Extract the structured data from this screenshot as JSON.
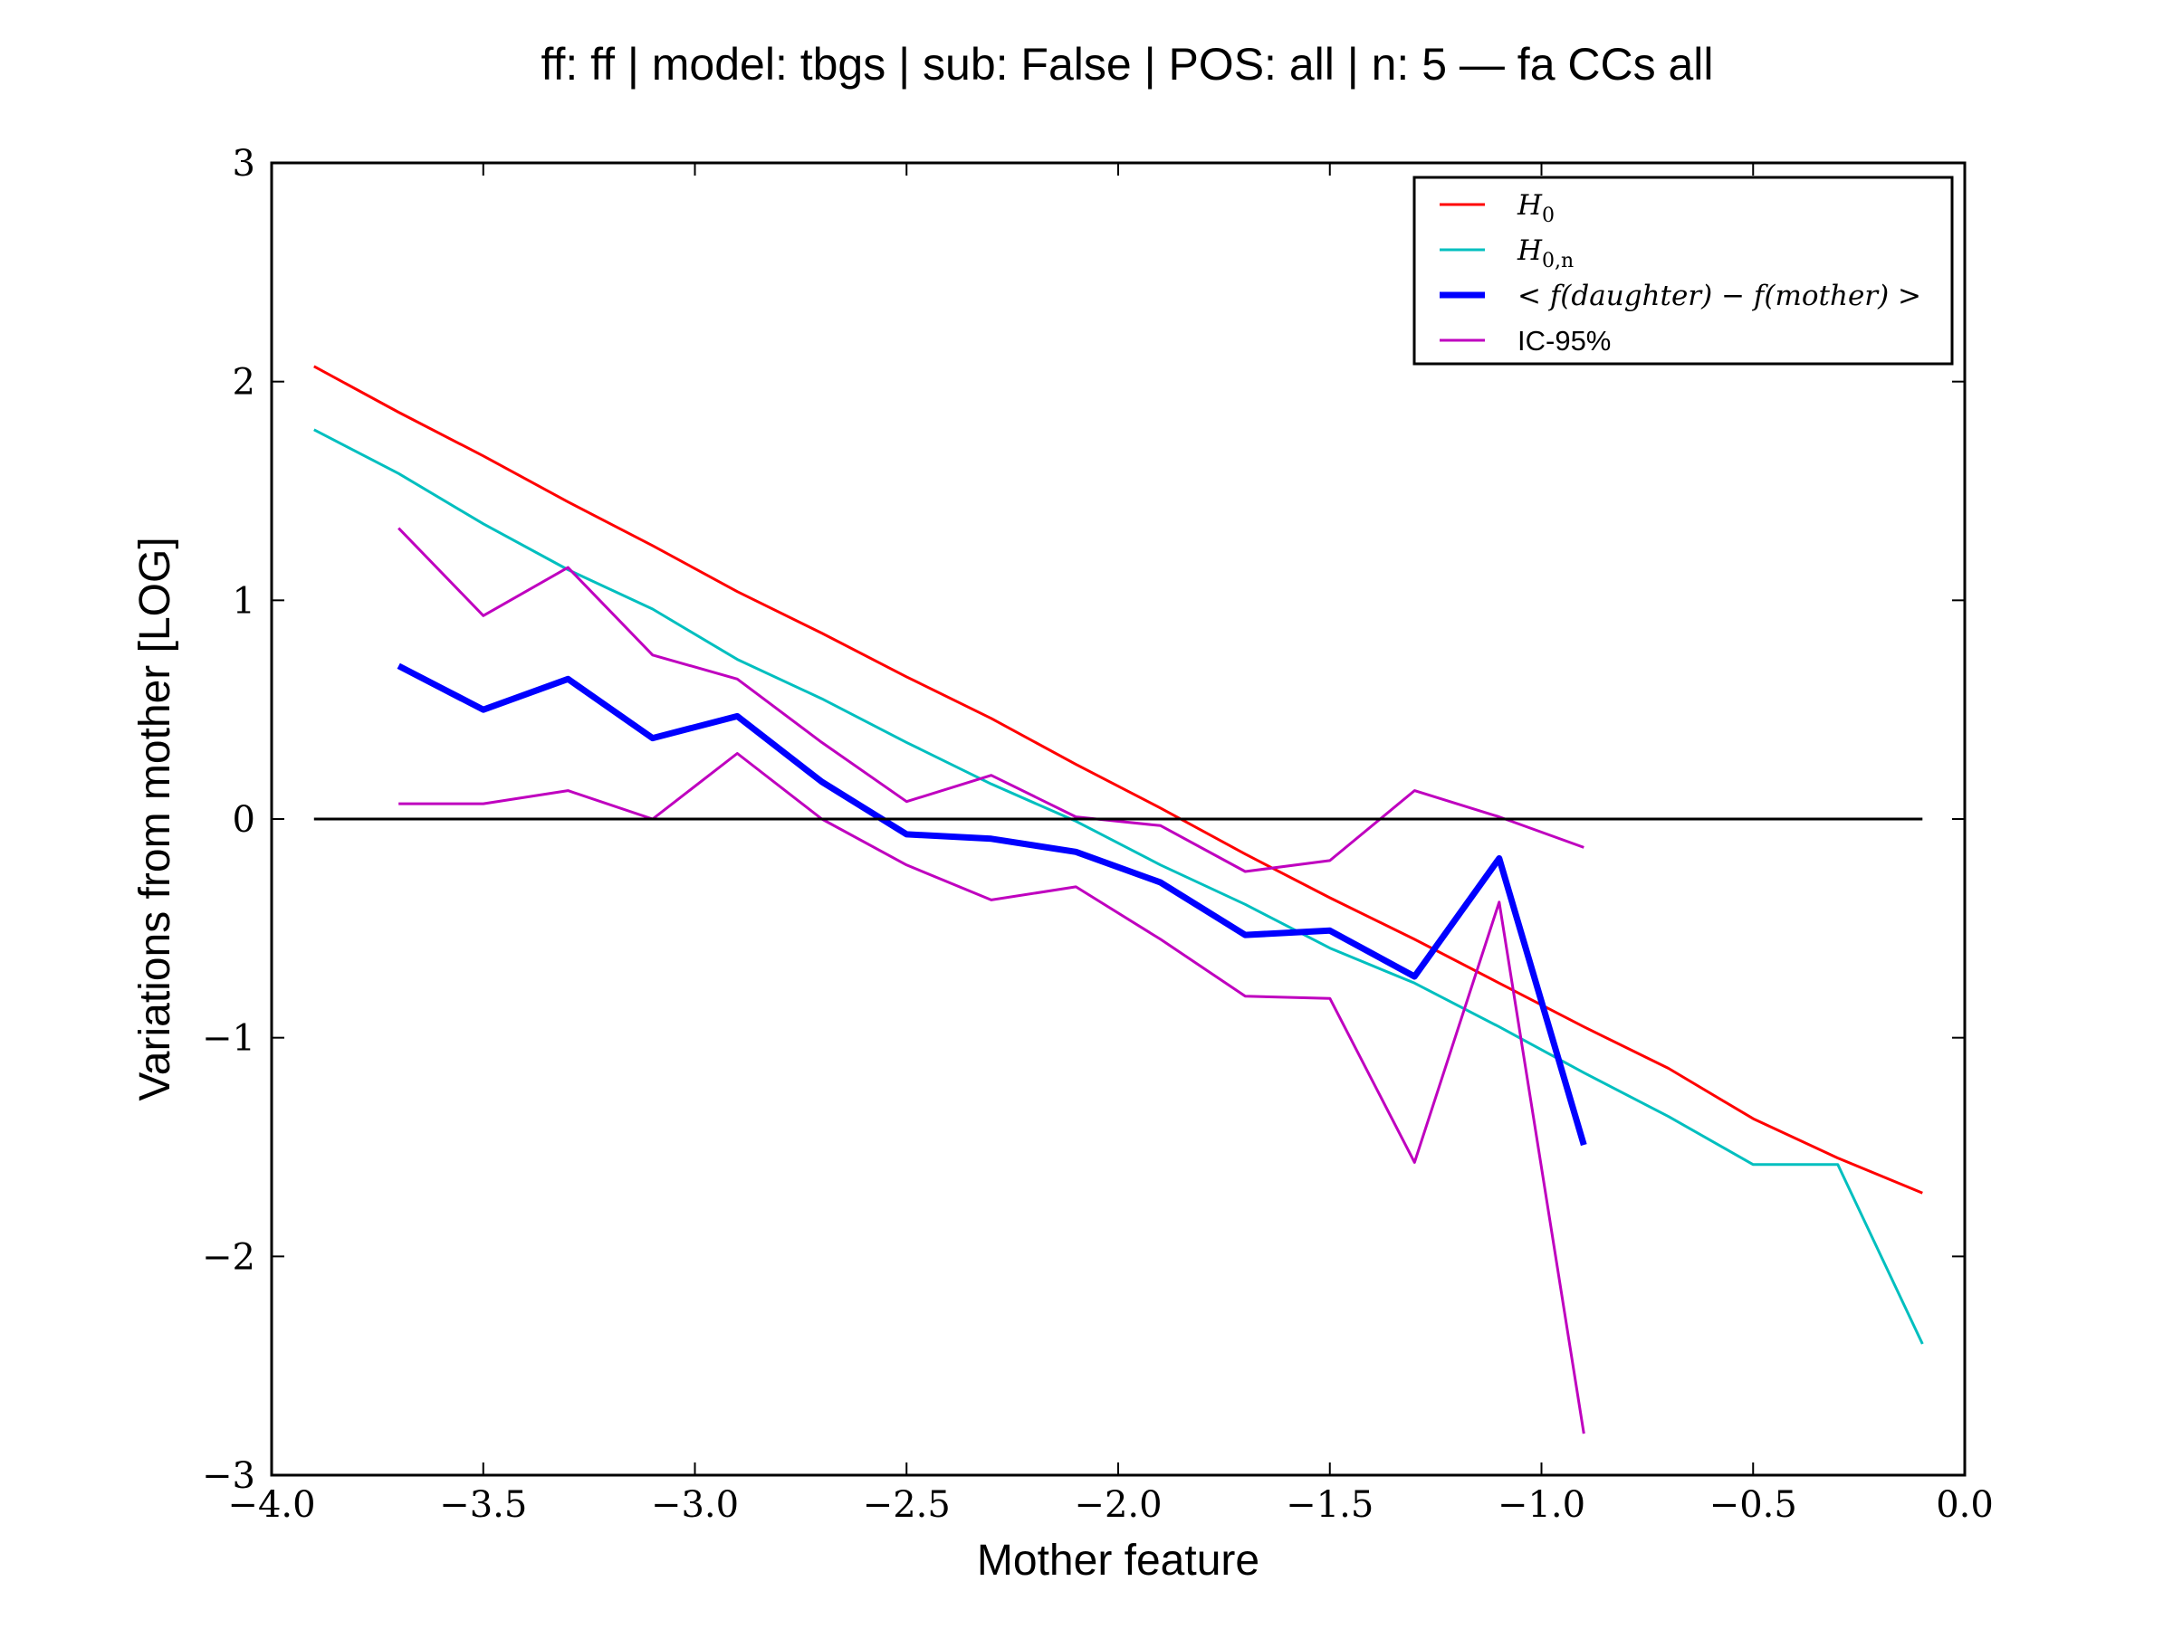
{
  "chart_data": {
    "type": "line",
    "title": "ff: ff | model: tbgs | sub: False | POS: all | n: 5 — fa CCs all",
    "xlabel": "Mother feature",
    "ylabel": "Variations from mother [LOG]",
    "xlim": [
      -4.0,
      0.0
    ],
    "ylim": [
      -3,
      3
    ],
    "xticks": [
      -4.0,
      -3.5,
      -3.0,
      -2.5,
      -2.0,
      -1.5,
      -1.0,
      -0.5,
      0.0
    ],
    "xtick_labels": [
      "−4.0",
      "−3.5",
      "−3.0",
      "−2.5",
      "−2.0",
      "−1.5",
      "−1.0",
      "−0.5",
      "0.0"
    ],
    "yticks": [
      -3,
      -2,
      -1,
      0,
      1,
      2,
      3
    ],
    "ytick_labels": [
      "−3",
      "−2",
      "−1",
      "0",
      "1",
      "2",
      "3"
    ],
    "grid": false,
    "legend_position": "top-right",
    "series": [
      {
        "name": "H_0",
        "color": "#ff0000",
        "width": 3,
        "x": [
          -3.9,
          -3.7,
          -3.5,
          -3.3,
          -3.1,
          -2.9,
          -2.7,
          -2.5,
          -2.3,
          -2.1,
          -1.9,
          -1.7,
          -1.5,
          -1.3,
          -1.1,
          -0.9,
          -0.7,
          -0.5,
          -0.3,
          -0.1
        ],
        "y": [
          2.07,
          1.86,
          1.66,
          1.45,
          1.25,
          1.04,
          0.85,
          0.65,
          0.46,
          0.25,
          0.05,
          -0.16,
          -0.36,
          -0.55,
          -0.75,
          -0.95,
          -1.14,
          -1.37,
          -1.55,
          -1.71
        ]
      },
      {
        "name": "H_{0,n}",
        "color": "#00bfbf",
        "width": 3,
        "x": [
          -3.9,
          -3.7,
          -3.5,
          -3.3,
          -3.1,
          -2.9,
          -2.7,
          -2.5,
          -2.3,
          -2.1,
          -1.9,
          -1.7,
          -1.5,
          -1.3,
          -1.1,
          -0.9,
          -0.7,
          -0.5,
          -0.3,
          -0.1
        ],
        "y": [
          1.78,
          1.58,
          1.35,
          1.14,
          0.96,
          0.73,
          0.55,
          0.35,
          0.16,
          -0.01,
          -0.21,
          -0.39,
          -0.59,
          -0.75,
          -0.95,
          -1.16,
          -1.36,
          -1.58,
          -1.58,
          -2.4
        ]
      },
      {
        "name": "< f(daughter) - f(mother) >",
        "color": "#0000ff",
        "width": 7,
        "x": [
          -3.7,
          -3.5,
          -3.3,
          -3.1,
          -2.9,
          -2.7,
          -2.5,
          -2.3,
          -2.1,
          -1.9,
          -1.7,
          -1.5,
          -1.3,
          -1.1,
          -0.9
        ],
        "y": [
          0.7,
          0.5,
          0.64,
          0.37,
          0.47,
          0.17,
          -0.07,
          -0.09,
          -0.15,
          -0.29,
          -0.53,
          -0.51,
          -0.72,
          -0.18,
          -1.49
        ]
      },
      {
        "name": "IC-95%",
        "color": "#bf00bf",
        "width": 3,
        "x": [
          -3.7,
          -3.5,
          -3.3,
          -3.1,
          -2.9,
          -2.7,
          -2.5,
          -2.3,
          -2.1,
          -1.9,
          -1.7,
          -1.5,
          -1.3,
          -1.1,
          -0.9
        ],
        "y": [
          1.33,
          0.93,
          1.15,
          0.75,
          0.64,
          0.35,
          0.08,
          0.2,
          0.01,
          -0.03,
          -0.24,
          -0.19,
          0.13,
          0.01,
          -0.13
        ]
      },
      {
        "name": "",
        "color": "#bf00bf",
        "width": 3,
        "x": [
          -3.7,
          -3.5,
          -3.3,
          -3.1,
          -2.9,
          -2.7,
          -2.5,
          -2.3,
          -2.1,
          -1.9,
          -1.7,
          -1.5,
          -1.3,
          -1.1,
          -0.9
        ],
        "y": [
          0.07,
          0.07,
          0.13,
          0.0,
          0.3,
          0.0,
          -0.21,
          -0.37,
          -0.31,
          -0.55,
          -0.81,
          -0.82,
          -1.57,
          -0.38,
          -2.81
        ]
      },
      {
        "name": "",
        "color": "#000000",
        "width": 3,
        "x": [
          -3.9,
          -0.1
        ],
        "y": [
          0,
          0
        ]
      }
    ],
    "legend": [
      {
        "label": "H",
        "sub": "0",
        "color": "#ff0000",
        "width": 3,
        "style": "math"
      },
      {
        "label": "H",
        "sub": "0,n",
        "color": "#00bfbf",
        "width": 3,
        "style": "math"
      },
      {
        "label": "< f(daughter) − f(mother) >",
        "sub": "",
        "color": "#0000ff",
        "width": 7,
        "style": "math"
      },
      {
        "label": "IC-95%",
        "sub": "",
        "color": "#bf00bf",
        "width": 3,
        "style": "plain"
      }
    ]
  }
}
